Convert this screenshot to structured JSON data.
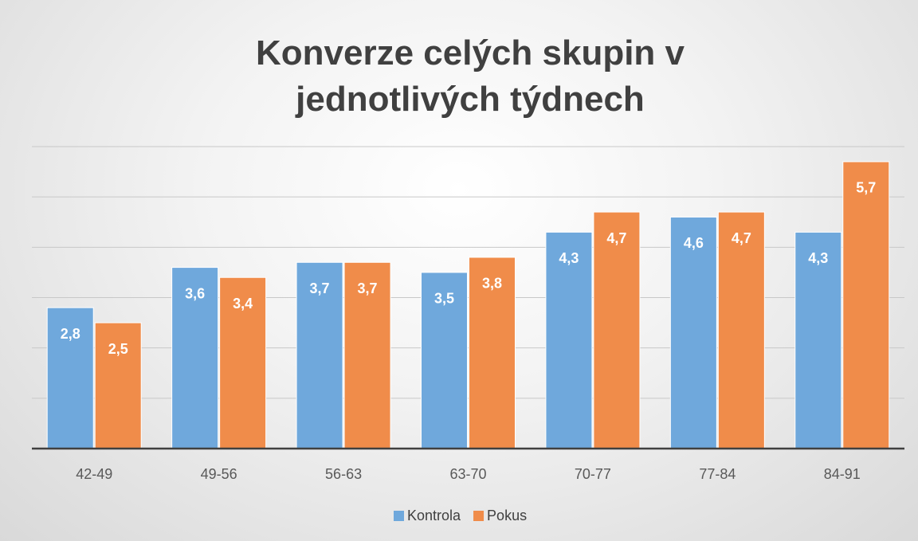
{
  "chart_data": {
    "type": "bar",
    "title": "Konverze celých skupin v jednotlivých týdnech",
    "categories": [
      "42-49",
      "49-56",
      "56-63",
      "63-70",
      "70-77",
      "77-84",
      "84-91"
    ],
    "series": [
      {
        "name": "Kontrola",
        "color": "#6fa8dc",
        "values": [
          2.8,
          3.6,
          3.7,
          3.5,
          4.3,
          4.6,
          4.3
        ],
        "value_labels": [
          "2,8",
          "3,6",
          "3,7",
          "3,5",
          "4,3",
          "4,6",
          "4,3"
        ]
      },
      {
        "name": "Pokus",
        "color": "#f08c4a",
        "values": [
          2.5,
          3.4,
          3.7,
          3.8,
          4.7,
          4.7,
          5.7
        ],
        "value_labels": [
          "2,5",
          "3,4",
          "3,7",
          "3,8",
          "4,7",
          "4,7",
          "5,7"
        ]
      }
    ],
    "ylim": [
      0,
      6
    ],
    "yticks": [
      0,
      1,
      2,
      3,
      4,
      5,
      6
    ],
    "grid": true,
    "legend": "bottom"
  }
}
